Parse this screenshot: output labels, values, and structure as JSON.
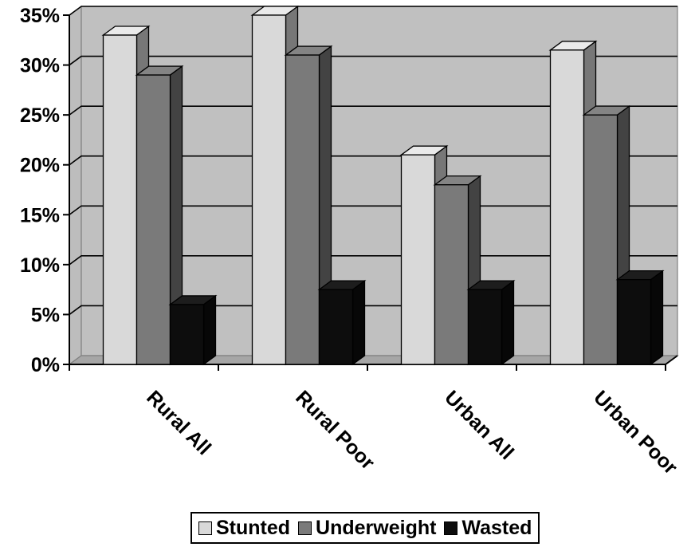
{
  "chart_data": {
    "type": "bar",
    "title": "",
    "xlabel": "",
    "ylabel": "",
    "categories": [
      "Rural All",
      "Rural Poor",
      "Urban All",
      "Urban Poor"
    ],
    "series": [
      {
        "name": "Stunted",
        "values": [
          33,
          35,
          21,
          31.5
        ],
        "color": "#d9d9d9"
      },
      {
        "name": "Underweight",
        "values": [
          29,
          31,
          18,
          25
        ],
        "color": "#7a7a7a"
      },
      {
        "name": "Wasted",
        "values": [
          6,
          7.5,
          7.5,
          8.5
        ],
        "color": "#0d0d0d"
      }
    ],
    "ylim": [
      0,
      35
    ],
    "yticks": [
      0,
      5,
      10,
      15,
      20,
      25,
      30,
      35
    ],
    "ytick_labels": [
      "0%",
      "5%",
      "10%",
      "15%",
      "20%",
      "25%",
      "30%",
      "35%"
    ],
    "grid": true,
    "style": "3d-clustered-column",
    "legend_position": "bottom"
  }
}
